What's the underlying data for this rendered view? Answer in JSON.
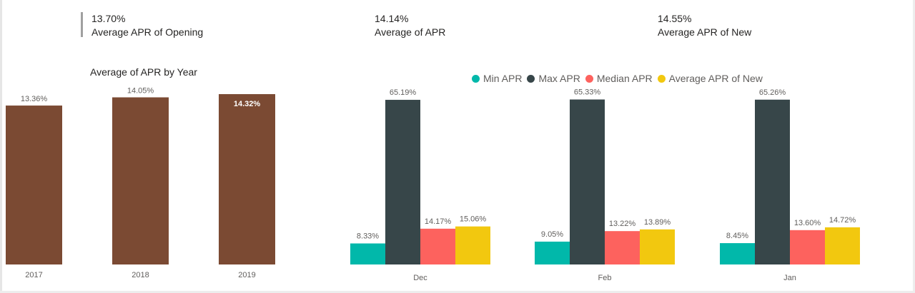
{
  "kpis": [
    {
      "value": "13.70%",
      "label": "Average APR of Opening"
    },
    {
      "value": "14.14%",
      "label": "Average of APR"
    },
    {
      "value": "14.55%",
      "label": "Average APR of New"
    }
  ],
  "colors": {
    "year_bar": "#7b4a33",
    "min_apr": "#01b8aa",
    "max_apr": "#374649",
    "median_apr": "#fd625e",
    "avg_apr_new": "#f2c80f"
  },
  "chart_data": [
    {
      "type": "bar",
      "title": "Average of APR by Year",
      "categories": [
        "2017",
        "2018",
        "2019"
      ],
      "values": [
        13.36,
        14.05,
        14.32
      ],
      "data_labels": [
        "13.36%",
        "14.05%",
        "14.32%"
      ],
      "ylim": [
        0,
        16
      ],
      "grid": false,
      "legend": "none"
    },
    {
      "type": "bar",
      "title": "",
      "categories": [
        "Dec",
        "Feb",
        "Jan"
      ],
      "series": [
        {
          "name": "Min APR",
          "color_key": "min_apr",
          "values": [
            8.33,
            9.05,
            8.45
          ],
          "labels": [
            "8.33%",
            "9.05%",
            "8.45%"
          ]
        },
        {
          "name": "Max APR",
          "color_key": "max_apr",
          "values": [
            65.19,
            65.33,
            65.26
          ],
          "labels": [
            "65.19%",
            "65.33%",
            "65.26%"
          ]
        },
        {
          "name": "Median APR",
          "color_key": "median_apr",
          "values": [
            14.17,
            13.22,
            13.6
          ],
          "labels": [
            "14.17%",
            "13.22%",
            "13.60%"
          ]
        },
        {
          "name": "Average APR of New",
          "color_key": "avg_apr_new",
          "values": [
            15.06,
            13.89,
            14.72
          ],
          "labels": [
            "15.06%",
            "13.89%",
            "14.72%"
          ]
        }
      ],
      "ylim": [
        0,
        70
      ],
      "grid": false,
      "legend": "top"
    }
  ]
}
